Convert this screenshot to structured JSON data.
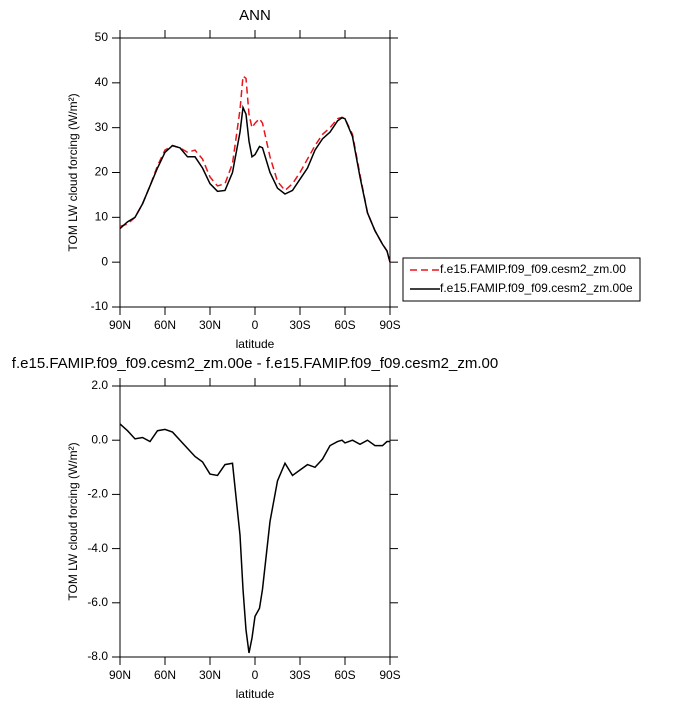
{
  "chart_data": [
    {
      "type": "line",
      "title": "ANN",
      "xlabel": "latitude",
      "ylabel": "TOM LW cloud forcing (W/m²)",
      "x": [
        90,
        85,
        80,
        75,
        70,
        65,
        60,
        55,
        50,
        45,
        40,
        35,
        30,
        25,
        20,
        15,
        10,
        8,
        6,
        4,
        2,
        0,
        -3,
        -5,
        -10,
        -15,
        -20,
        -25,
        -30,
        -35,
        -40,
        -45,
        -50,
        -55,
        -58,
        -60,
        -65,
        -70,
        -75,
        -80,
        -85,
        -88,
        -90
      ],
      "xlim": [
        90,
        -90
      ],
      "xticks": [
        {
          "value": 90,
          "label": "90N"
        },
        {
          "value": 60,
          "label": "60N"
        },
        {
          "value": 30,
          "label": "30N"
        },
        0,
        {
          "value": -30,
          "label": "30S"
        },
        {
          "value": -60,
          "label": "60S"
        },
        {
          "value": -90,
          "label": "90S"
        }
      ],
      "ylim": [
        -10,
        50
      ],
      "yticks": [
        -10,
        0,
        10,
        20,
        30,
        40,
        50
      ],
      "legend": "right",
      "series": [
        {
          "name": "f.e15.FAMIP.f09_f09.cesm2_zm.00",
          "color": "#e8141c",
          "dash": "dashed",
          "values": [
            8,
            8.5,
            10,
            13,
            17,
            21.5,
            25,
            26,
            25.5,
            24.5,
            25,
            23,
            19,
            17,
            17.5,
            22,
            34,
            41.5,
            41,
            33,
            30,
            31,
            32,
            31,
            23.5,
            18,
            16,
            17.5,
            20,
            23,
            26,
            28.5,
            30,
            32,
            32.3,
            32,
            28.5,
            19.5,
            11,
            7,
            4,
            2.5,
            0
          ]
        },
        {
          "name": "f.e15.FAMIP.f09_f09.cesm2_zm.00e",
          "color": "#000000",
          "dash": "solid",
          "values": [
            7.5,
            9,
            10,
            13,
            17,
            21,
            24.5,
            26,
            25.5,
            23.5,
            23.5,
            21,
            17.5,
            15.8,
            16,
            20,
            29,
            34.5,
            33,
            27,
            23.5,
            24,
            25.8,
            25.5,
            20,
            16.5,
            15.2,
            16,
            18.5,
            21,
            25,
            27.5,
            29,
            31.5,
            32.2,
            32,
            28,
            19,
            11,
            7,
            4,
            2.5,
            0
          ]
        }
      ]
    },
    {
      "type": "line",
      "title": "f.e15.FAMIP.f09_f09.cesm2_zm.00e - f.e15.FAMIP.f09_f09.cesm2_zm.00",
      "xlabel": "latitude",
      "ylabel": "TOM LW cloud forcing (W/m²)",
      "x": [
        90,
        85,
        80,
        75,
        70,
        65,
        60,
        55,
        50,
        45,
        40,
        35,
        30,
        25,
        20,
        15,
        10,
        8,
        6,
        4,
        2,
        0,
        -3,
        -5,
        -10,
        -15,
        -20,
        -25,
        -30,
        -35,
        -40,
        -45,
        -50,
        -55,
        -58,
        -60,
        -65,
        -70,
        -75,
        -80,
        -85,
        -88,
        -90
      ],
      "xlim": [
        90,
        -90
      ],
      "xticks": [
        {
          "value": 90,
          "label": "90N"
        },
        {
          "value": 60,
          "label": "60N"
        },
        {
          "value": 30,
          "label": "30N"
        },
        0,
        {
          "value": -30,
          "label": "30S"
        },
        {
          "value": -60,
          "label": "60S"
        },
        {
          "value": -90,
          "label": "90S"
        }
      ],
      "ylim": [
        -8,
        2
      ],
      "yticks": [
        {
          "value": -8,
          "label": "-8.0"
        },
        {
          "value": -6,
          "label": "-6.0"
        },
        {
          "value": -4,
          "label": "-4.0"
        },
        {
          "value": -2,
          "label": "-2.0"
        },
        {
          "value": 0,
          "label": "0.0"
        },
        {
          "value": 2,
          "label": "2.0"
        }
      ],
      "color": "#000000",
      "values": [
        0.6,
        0.35,
        0.05,
        0.1,
        -0.05,
        0.35,
        0.4,
        0.3,
        0.0,
        -0.3,
        -0.6,
        -0.8,
        -1.25,
        -1.3,
        -0.9,
        -0.85,
        -3.5,
        -5.5,
        -7.0,
        -7.85,
        -7.3,
        -6.5,
        -6.2,
        -5.5,
        -3.0,
        -1.5,
        -0.85,
        -1.3,
        -1.1,
        -0.9,
        -1.0,
        -0.7,
        -0.2,
        -0.05,
        0.0,
        -0.1,
        0.0,
        -0.15,
        0.0,
        -0.2,
        -0.2,
        -0.05,
        -0.05
      ]
    }
  ]
}
